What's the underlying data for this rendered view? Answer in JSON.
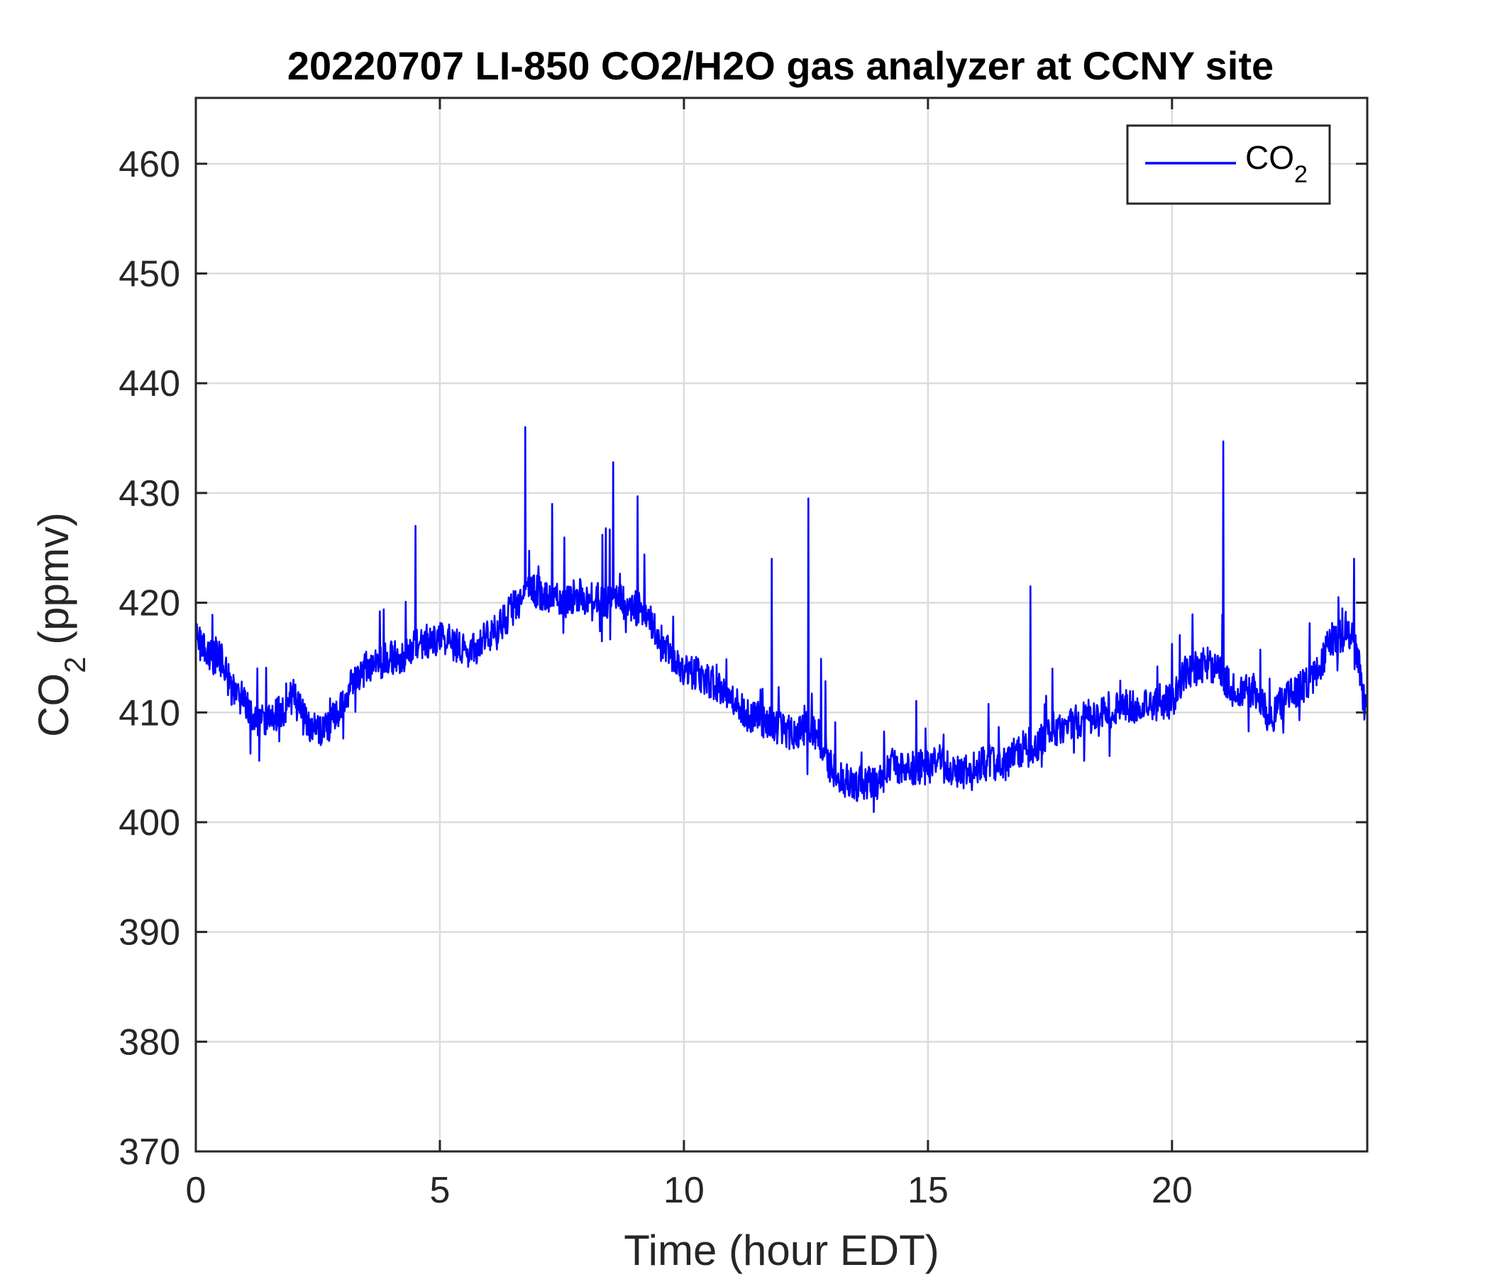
{
  "chart_data": {
    "type": "line",
    "title": "20220707 LI-850 CO2/H2O gas analyzer at CCNY site",
    "xlabel": "Time (hour EDT)",
    "ylabel_main": "CO",
    "ylabel_sub": "2",
    "ylabel_suffix": " (ppmv)",
    "xlim": [
      0,
      24
    ],
    "ylim": [
      370,
      466
    ],
    "xticks": [
      0,
      5,
      10,
      15,
      20
    ],
    "yticks": [
      370,
      380,
      390,
      400,
      410,
      420,
      430,
      440,
      450,
      460
    ],
    "grid": true,
    "legend": {
      "placement": "top-right",
      "entries": [
        {
          "main": "CO",
          "sub": "2"
        }
      ]
    },
    "series": [
      {
        "name": "CO2",
        "color": "#0000ff",
        "x": [
          0,
          0.25,
          0.5,
          0.75,
          1,
          1.25,
          1.5,
          1.75,
          2,
          2.25,
          2.5,
          2.75,
          3,
          3.25,
          3.5,
          3.75,
          4,
          4.25,
          4.5,
          4.75,
          5,
          5.25,
          5.5,
          5.75,
          6,
          6.25,
          6.5,
          6.75,
          7,
          7.25,
          7.5,
          7.75,
          8,
          8.25,
          8.5,
          8.75,
          9,
          9.25,
          9.5,
          9.75,
          10,
          10.25,
          10.5,
          10.75,
          11,
          11.25,
          11.5,
          11.75,
          12,
          12.25,
          12.5,
          12.75,
          13,
          13.25,
          13.5,
          13.75,
          14,
          14.25,
          14.5,
          14.75,
          15,
          15.25,
          15.5,
          15.75,
          16,
          16.25,
          16.5,
          16.75,
          17,
          17.25,
          17.5,
          17.75,
          18,
          18.25,
          18.5,
          18.75,
          19,
          19.25,
          19.5,
          19.75,
          20,
          20.25,
          20.5,
          20.75,
          21,
          21.25,
          21.5,
          21.75,
          22,
          22.25,
          22.5,
          22.75,
          23,
          23.25,
          23.5,
          23.75,
          24
        ],
        "y": [
          417,
          415,
          415,
          412,
          411,
          409,
          409.5,
          410,
          411.5,
          409,
          408.5,
          409,
          410.5,
          413.5,
          414,
          414.5,
          415,
          415,
          416.5,
          416.5,
          417,
          416.5,
          415.5,
          416,
          417,
          418,
          419.5,
          421,
          421,
          420.5,
          420,
          420.5,
          420.5,
          420.5,
          420,
          420,
          419.5,
          419,
          417,
          415,
          414,
          413.5,
          413,
          412,
          411,
          410,
          409.5,
          409,
          408.5,
          408,
          408.5,
          408,
          405,
          404,
          403.5,
          403.5,
          403.5,
          405,
          405,
          405,
          405,
          405.5,
          404.5,
          404.5,
          405,
          405.5,
          405,
          406,
          407,
          407,
          408.5,
          408.5,
          409,
          409.5,
          410,
          410,
          410.5,
          410.5,
          410.5,
          411,
          411,
          413.5,
          414,
          414.5,
          413.5,
          412,
          412,
          412,
          409,
          411,
          412,
          412.5,
          414,
          416.5,
          417,
          416.5,
          409
        ],
        "spikes": [
          {
            "x": 4.5,
            "y": 427
          },
          {
            "x": 6.75,
            "y": 436
          },
          {
            "x": 7.3,
            "y": 429
          },
          {
            "x": 8.55,
            "y": 432.8
          },
          {
            "x": 9.05,
            "y": 429.7
          },
          {
            "x": 11.8,
            "y": 424
          },
          {
            "x": 12.55,
            "y": 429.5
          },
          {
            "x": 17.1,
            "y": 421.5
          },
          {
            "x": 21.05,
            "y": 434.7
          }
        ]
      }
    ]
  }
}
